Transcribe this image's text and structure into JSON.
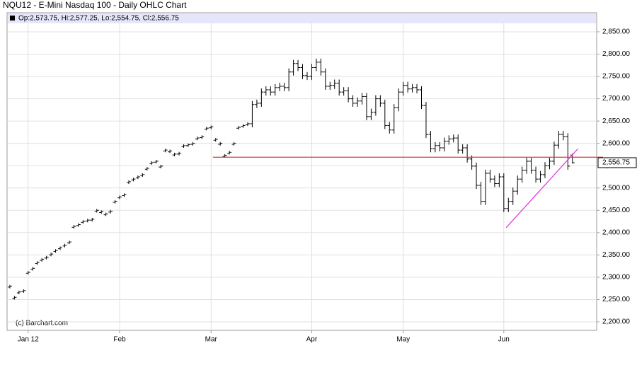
{
  "chart_data": {
    "type": "ohlc",
    "title": "NQU12 - E-Mini Nasdaq 100 - Daily OHLC Chart",
    "info_label": "Op:2,573.75, Hi:2,577.25, Lo:2,554.75, Cl:2,556.75",
    "source": "(c) Barchart.com",
    "last_price_label": "2,556.75",
    "color": "#000000",
    "grid": true,
    "xlim": [
      -0.3,
      128.3
    ],
    "xticks": [
      {
        "value": 4,
        "label": "Jan 12"
      },
      {
        "value": 24,
        "label": "Feb"
      },
      {
        "value": 44,
        "label": "Mar"
      },
      {
        "value": 66,
        "label": "Apr"
      },
      {
        "value": 86,
        "label": "May"
      },
      {
        "value": 108,
        "label": "Jun"
      }
    ],
    "ylim": [
      2181,
      2869
    ],
    "yticks": [
      {
        "value": 2200,
        "label": "2,200.00"
      },
      {
        "value": 2250,
        "label": "2,250.00"
      },
      {
        "value": 2300,
        "label": "2,300.00"
      },
      {
        "value": 2350,
        "label": "2,350.00"
      },
      {
        "value": 2400,
        "label": "2,400.00"
      },
      {
        "value": 2450,
        "label": "2,450.00"
      },
      {
        "value": 2500,
        "label": "2,500.00"
      },
      {
        "value": 2550,
        "label": "2,550.00"
      },
      {
        "value": 2600,
        "label": "2,600.00"
      },
      {
        "value": 2650,
        "label": "2,650.00"
      },
      {
        "value": 2700,
        "label": "2,700.00"
      },
      {
        "value": 2750,
        "label": "2,750.00"
      },
      {
        "value": 2800,
        "label": "2,800.00"
      },
      {
        "value": 2850,
        "label": "2,850.00"
      }
    ],
    "open": [
      2278,
      2253,
      2265,
      2268,
      2309,
      2318,
      2331,
      2338,
      2343,
      2350,
      2358,
      2364,
      2370,
      2377,
      2412,
      2416,
      2423,
      2426,
      2428,
      2448,
      2445,
      2440,
      2446,
      2468,
      2478,
      2483,
      2512,
      2518,
      2523,
      2528,
      2542,
      2555,
      2558,
      2547,
      2583,
      2581,
      2574,
      2576,
      2593,
      2595,
      2598,
      2610,
      2613,
      2632,
      2635,
      2607,
      2598,
      2571,
      2578,
      2598,
      2634,
      2638,
      2642,
      2644,
      2687,
      2690,
      2715,
      2720,
      2715,
      2725,
      2728,
      2725,
      2760,
      2779,
      2770,
      2752,
      2750,
      2770,
      2782,
      2760,
      2728,
      2730,
      2735,
      2715,
      2718,
      2700,
      2690,
      2695,
      2705,
      2660,
      2670,
      2700,
      2690,
      2640,
      2630,
      2680,
      2715,
      2730,
      2722,
      2725,
      2720,
      2685,
      2620,
      2588,
      2595,
      2590,
      2605,
      2610,
      2612,
      2585,
      2590,
      2565,
      2549,
      2506,
      2470,
      2533,
      2520,
      2510,
      2525,
      2454,
      2470,
      2493,
      2520,
      2540,
      2560,
      2540,
      2520,
      2530,
      2550,
      2560,
      2596,
      2620,
      2615,
      2573.75
    ],
    "high": [
      2283,
      2258,
      2270,
      2273,
      2314,
      2323,
      2336,
      2343,
      2348,
      2355,
      2363,
      2369,
      2375,
      2382,
      2417,
      2421,
      2428,
      2431,
      2433,
      2453,
      2450,
      2445,
      2451,
      2473,
      2483,
      2488,
      2517,
      2523,
      2528,
      2533,
      2547,
      2560,
      2563,
      2552,
      2588,
      2586,
      2579,
      2581,
      2598,
      2600,
      2603,
      2615,
      2618,
      2637,
      2640,
      2612,
      2603,
      2576,
      2583,
      2603,
      2639,
      2643,
      2647,
      2695,
      2698,
      2723,
      2728,
      2728,
      2733,
      2736,
      2736,
      2768,
      2787,
      2787,
      2778,
      2760,
      2778,
      2790,
      2790,
      2768,
      2738,
      2743,
      2743,
      2726,
      2726,
      2708,
      2703,
      2713,
      2713,
      2678,
      2708,
      2708,
      2698,
      2648,
      2688,
      2723,
      2738,
      2738,
      2733,
      2733,
      2728,
      2693,
      2628,
      2603,
      2603,
      2613,
      2618,
      2620,
      2620,
      2598,
      2598,
      2573,
      2557,
      2514,
      2541,
      2541,
      2528,
      2533,
      2533,
      2478,
      2501,
      2528,
      2548,
      2568,
      2568,
      2548,
      2538,
      2558,
      2568,
      2604,
      2628,
      2628,
      2623,
      2577.25
    ],
    "low": [
      2275,
      2250,
      2262,
      2265,
      2306,
      2315,
      2328,
      2335,
      2340,
      2347,
      2355,
      2361,
      2367,
      2374,
      2409,
      2413,
      2420,
      2423,
      2425,
      2445,
      2442,
      2437,
      2443,
      2465,
      2475,
      2480,
      2509,
      2515,
      2520,
      2525,
      2539,
      2552,
      2555,
      2544,
      2580,
      2578,
      2571,
      2573,
      2590,
      2592,
      2595,
      2607,
      2610,
      2629,
      2632,
      2604,
      2595,
      2568,
      2575,
      2595,
      2631,
      2635,
      2639,
      2636,
      2679,
      2682,
      2707,
      2707,
      2707,
      2717,
      2717,
      2717,
      2752,
      2762,
      2744,
      2742,
      2742,
      2762,
      2752,
      2720,
      2720,
      2722,
      2707,
      2707,
      2692,
      2682,
      2682,
      2687,
      2652,
      2652,
      2662,
      2682,
      2632,
      2622,
      2622,
      2672,
      2707,
      2714,
      2714,
      2712,
      2677,
      2612,
      2580,
      2580,
      2582,
      2582,
      2597,
      2602,
      2577,
      2577,
      2557,
      2541,
      2498,
      2462,
      2462,
      2512,
      2502,
      2502,
      2446,
      2446,
      2462,
      2485,
      2512,
      2532,
      2532,
      2512,
      2512,
      2522,
      2542,
      2552,
      2588,
      2607,
      2541,
      2554.75
    ],
    "close": [
      2280,
      2255,
      2267,
      2270,
      2311,
      2320,
      2333,
      2340,
      2345,
      2352,
      2360,
      2366,
      2372,
      2379,
      2414,
      2418,
      2425,
      2428,
      2430,
      2450,
      2447,
      2442,
      2448,
      2470,
      2480,
      2485,
      2514,
      2520,
      2525,
      2530,
      2544,
      2557,
      2560,
      2549,
      2585,
      2583,
      2576,
      2578,
      2595,
      2597,
      2600,
      2612,
      2615,
      2634,
      2637,
      2609,
      2600,
      2573,
      2580,
      2600,
      2636,
      2640,
      2644,
      2687,
      2690,
      2715,
      2720,
      2715,
      2725,
      2728,
      2725,
      2760,
      2779,
      2770,
      2752,
      2750,
      2770,
      2782,
      2760,
      2728,
      2730,
      2735,
      2715,
      2718,
      2700,
      2690,
      2695,
      2705,
      2660,
      2670,
      2700,
      2690,
      2640,
      2630,
      2680,
      2715,
      2730,
      2722,
      2725,
      2720,
      2685,
      2620,
      2588,
      2595,
      2590,
      2605,
      2610,
      2612,
      2585,
      2590,
      2565,
      2549,
      2506,
      2470,
      2533,
      2520,
      2510,
      2525,
      2454,
      2470,
      2493,
      2520,
      2540,
      2560,
      2540,
      2520,
      2530,
      2550,
      2560,
      2596,
      2620,
      2615,
      2549,
      2556.75
    ],
    "annotations": [
      {
        "color": "#e03a3a",
        "x": [
          44.4,
          129.7
        ],
        "y": [
          2569,
          2569
        ]
      },
      {
        "color": "#e040e0",
        "x": [
          108.5,
          124.2
        ],
        "y": [
          2411,
          2588
        ]
      }
    ]
  }
}
